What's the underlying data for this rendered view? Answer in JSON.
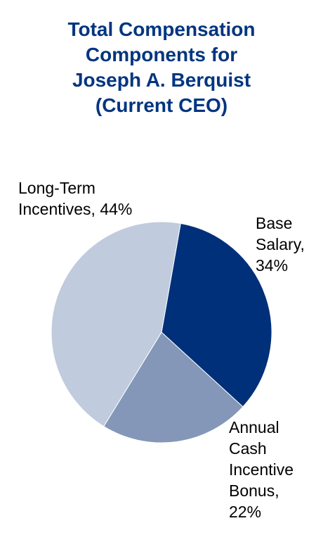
{
  "chart_data": {
    "type": "pie",
    "title_lines": [
      "Total Compensation",
      "Components for",
      "Joseph A. Berquist",
      "(Current CEO)"
    ],
    "slices": [
      {
        "label": "Base Salary",
        "value": 34,
        "color": "#00307A",
        "label_lines": [
          "Base",
          "Salary,",
          "34%"
        ]
      },
      {
        "label": "Annual Cash Incentive Bonus",
        "value": 22,
        "color": "#8497B8",
        "label_lines": [
          "Annual",
          "Cash",
          "Incentive",
          "Bonus,",
          "22%"
        ]
      },
      {
        "label": "Long-Term Incentives",
        "value": 44,
        "color": "#C0CBDD",
        "label_lines": [
          "Long-Term",
          "Incentives, 44%"
        ]
      }
    ],
    "legend": "none"
  }
}
